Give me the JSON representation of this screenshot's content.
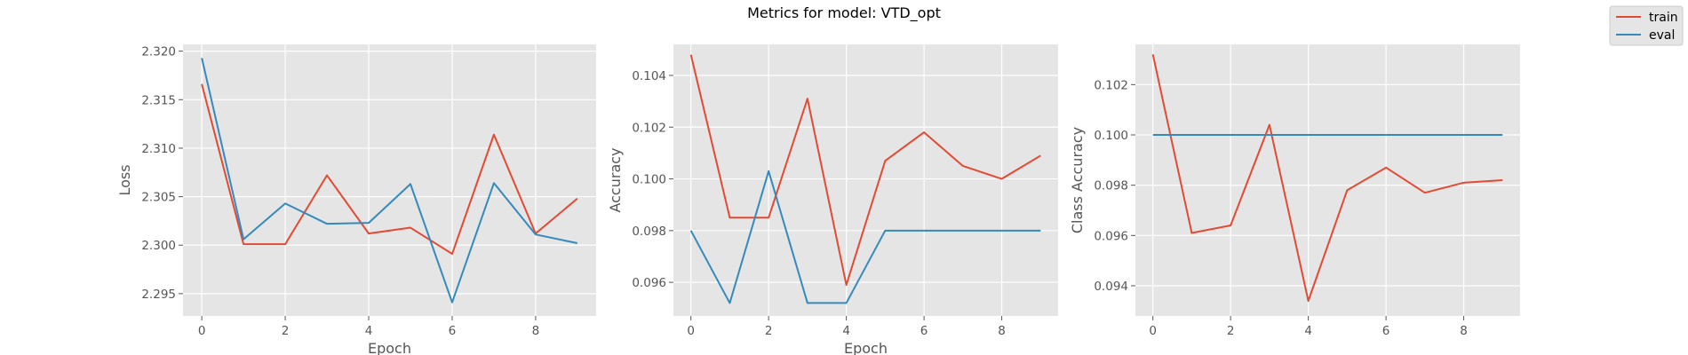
{
  "figure": {
    "title": "Metrics for model: VTD_opt"
  },
  "legend": {
    "placement": "upper-right",
    "entries": [
      {
        "label": "train",
        "color": "#e24a33"
      },
      {
        "label": "eval",
        "color": "#348abd"
      }
    ]
  },
  "chart_data": [
    {
      "type": "line",
      "title": "",
      "xlabel": "Epoch",
      "ylabel": "Loss",
      "grid": true,
      "xlim": [
        -0.45,
        9.45
      ],
      "ylim": [
        2.2927,
        2.3207
      ],
      "xticks": [
        0,
        2,
        4,
        6,
        8
      ],
      "yticks": [
        2.295,
        2.3,
        2.305,
        2.31,
        2.315,
        2.32
      ],
      "ytick_labels": [
        "2.295",
        "2.300",
        "2.305",
        "2.310",
        "2.315",
        "2.320"
      ],
      "x": [
        0,
        1,
        2,
        3,
        4,
        5,
        6,
        7,
        8,
        9
      ],
      "series": [
        {
          "name": "train",
          "color": "#e24a33",
          "values": [
            2.3166,
            2.3001,
            2.3001,
            2.3072,
            2.3012,
            2.3018,
            2.2991,
            2.3114,
            2.3012,
            2.3048
          ]
        },
        {
          "name": "eval",
          "color": "#348abd",
          "values": [
            2.3193,
            2.3006,
            2.3043,
            2.3022,
            2.3023,
            2.3063,
            2.2941,
            2.3064,
            2.3011,
            2.3002
          ]
        }
      ]
    },
    {
      "type": "line",
      "title": "",
      "xlabel": "Epoch",
      "ylabel": "Accuracy",
      "grid": true,
      "xlim": [
        -0.45,
        9.45
      ],
      "ylim": [
        0.0947,
        0.1052
      ],
      "xticks": [
        0,
        2,
        4,
        6,
        8
      ],
      "yticks": [
        0.096,
        0.098,
        0.1,
        0.102,
        0.104
      ],
      "ytick_labels": [
        "0.096",
        "0.098",
        "0.100",
        "0.102",
        "0.104"
      ],
      "x": [
        0,
        1,
        2,
        3,
        4,
        5,
        6,
        7,
        8,
        9
      ],
      "series": [
        {
          "name": "train",
          "color": "#e24a33",
          "values": [
            0.1048,
            0.0985,
            0.0985,
            0.1031,
            0.0959,
            0.1007,
            0.1018,
            0.1005,
            0.1,
            0.1009
          ]
        },
        {
          "name": "eval",
          "color": "#348abd",
          "values": [
            0.098,
            0.0952,
            0.1003,
            0.0952,
            0.0952,
            0.098,
            0.098,
            0.098,
            0.098,
            0.098
          ]
        }
      ]
    },
    {
      "type": "line",
      "title": "",
      "xlabel": "",
      "ylabel": "Class Accuracy",
      "grid": true,
      "xlim": [
        -0.45,
        9.45
      ],
      "ylim": [
        0.0928,
        0.1036
      ],
      "xticks": [
        0,
        2,
        4,
        6,
        8
      ],
      "yticks": [
        0.094,
        0.096,
        0.098,
        0.1,
        0.102
      ],
      "ytick_labels": [
        "0.094",
        "0.096",
        "0.098",
        "0.100",
        "0.102"
      ],
      "x": [
        0,
        1,
        2,
        3,
        4,
        5,
        6,
        7,
        8,
        9
      ],
      "series": [
        {
          "name": "train",
          "color": "#e24a33",
          "values": [
            0.1032,
            0.0961,
            0.0964,
            0.1004,
            0.0934,
            0.0978,
            0.0987,
            0.0977,
            0.0981,
            0.0982
          ]
        },
        {
          "name": "eval",
          "color": "#348abd",
          "values": [
            0.1,
            0.1,
            0.1,
            0.1,
            0.1,
            0.1,
            0.1,
            0.1,
            0.1,
            0.1
          ]
        }
      ]
    }
  ]
}
